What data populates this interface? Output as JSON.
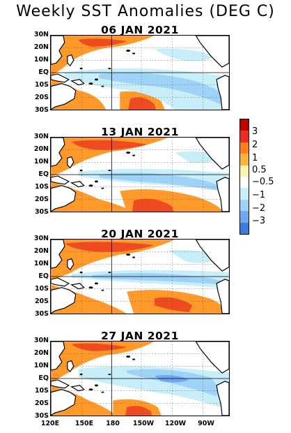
{
  "title": "Weekly SST Anomalies (DEG C)",
  "panels": [
    {
      "date": "06 JAN 2021"
    },
    {
      "date": "13 JAN 2021"
    },
    {
      "date": "20 JAN 2021"
    },
    {
      "date": "27 JAN 2021"
    }
  ],
  "lat_labels": [
    "30N",
    "20N",
    "10N",
    "EQ",
    "10S",
    "20S",
    "30S"
  ],
  "lon_labels": [
    "120E",
    "150E",
    "180",
    "150W",
    "120W",
    "90W"
  ],
  "colorbar": {
    "labels": [
      "3",
      "2",
      "1",
      "0.5",
      "−0.5",
      "−1",
      "−2",
      "−3"
    ],
    "colors": [
      "#c00000",
      "#ee2b1c",
      "#ff7f1b",
      "#ffb33a",
      "#fff4a8",
      "#ffffff",
      "#c8eefa",
      "#9ed2f7",
      "#6fa8f0",
      "#3c7be4"
    ]
  },
  "colors": {
    "land": "#000000",
    "positive_strong": "#ee4b20",
    "positive": "#ff9a2a",
    "positive_weak": "#ffd46a",
    "negative_weak": "#c8eefa",
    "negative": "#9ed2f7",
    "negative_strong": "#6fa8f0"
  }
}
